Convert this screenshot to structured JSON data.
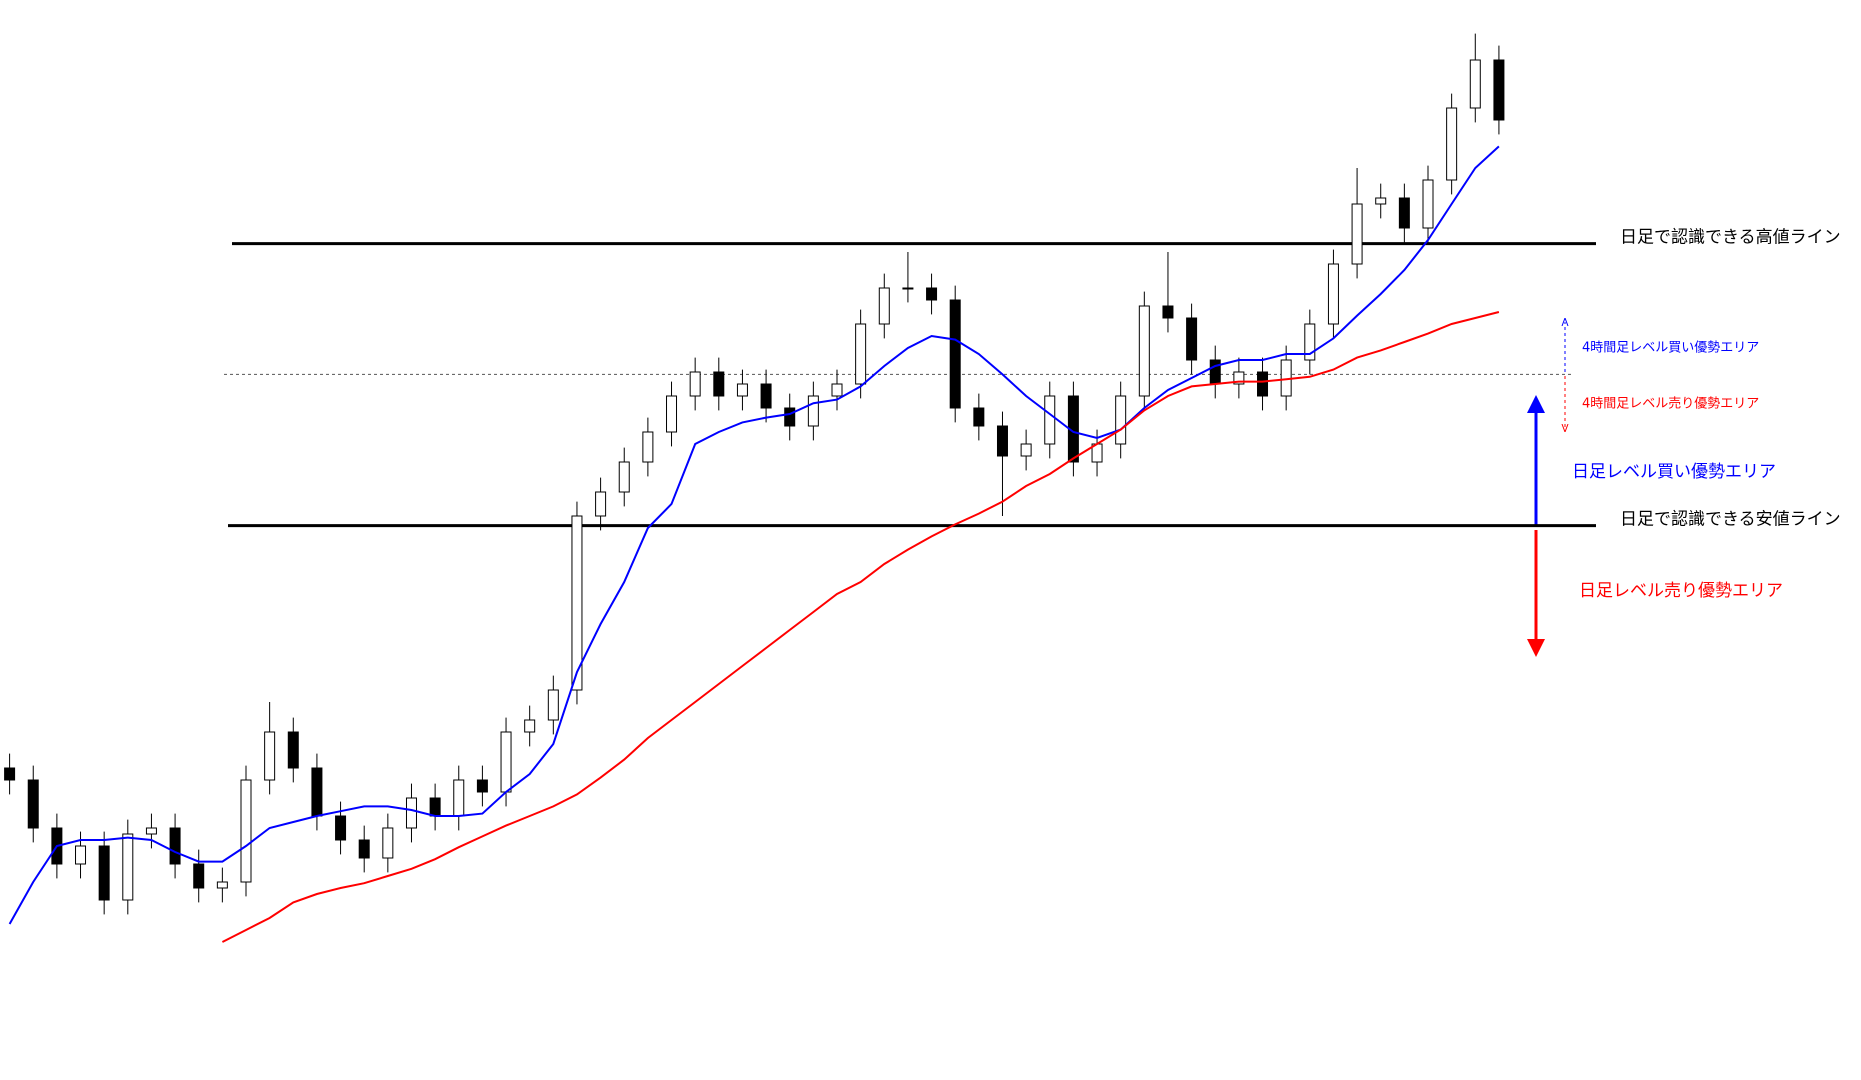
{
  "chart_data": {
    "type": "candlestick",
    "ylim": [
      0,
      900
    ],
    "candles": {
      "open": [
        260,
        250,
        210,
        180,
        195,
        150,
        205,
        210,
        180,
        160,
        165,
        250,
        290,
        260,
        220,
        200,
        185,
        210,
        235,
        220,
        250,
        240,
        290,
        300,
        325,
        470,
        490,
        515,
        540,
        570,
        590,
        570,
        580,
        560,
        545,
        570,
        580,
        630,
        660,
        660,
        650,
        560,
        545,
        520,
        530,
        570,
        515,
        530,
        570,
        645,
        635,
        600,
        580,
        590,
        570,
        600,
        630,
        680,
        730,
        735,
        710,
        750,
        810,
        850
      ],
      "high": [
        272,
        262,
        222,
        207,
        207,
        217,
        222,
        222,
        192,
        177,
        262,
        315,
        302,
        272,
        232,
        212,
        222,
        247,
        247,
        262,
        262,
        302,
        312,
        337,
        482,
        502,
        527,
        552,
        582,
        602,
        602,
        592,
        592,
        572,
        582,
        592,
        642,
        672,
        690,
        672,
        662,
        572,
        557,
        542,
        582,
        582,
        542,
        582,
        657,
        690,
        647,
        612,
        602,
        602,
        612,
        642,
        692,
        760,
        747,
        747,
        762,
        822,
        872,
        862
      ],
      "low": [
        238,
        198,
        168,
        168,
        138,
        138,
        193,
        168,
        148,
        148,
        153,
        238,
        248,
        208,
        188,
        173,
        173,
        198,
        208,
        208,
        228,
        228,
        278,
        288,
        313,
        458,
        478,
        503,
        528,
        558,
        558,
        558,
        548,
        533,
        533,
        558,
        568,
        618,
        648,
        638,
        548,
        533,
        470,
        508,
        518,
        503,
        503,
        518,
        558,
        623,
        588,
        568,
        568,
        558,
        558,
        588,
        618,
        668,
        718,
        698,
        698,
        738,
        798,
        788
      ],
      "close": [
        250,
        210,
        180,
        195,
        150,
        205,
        210,
        180,
        160,
        165,
        250,
        290,
        260,
        220,
        200,
        185,
        210,
        235,
        220,
        250,
        240,
        290,
        300,
        325,
        470,
        490,
        515,
        540,
        570,
        590,
        570,
        580,
        560,
        545,
        570,
        580,
        630,
        660,
        660,
        650,
        560,
        545,
        520,
        530,
        570,
        515,
        530,
        570,
        645,
        635,
        600,
        580,
        590,
        570,
        600,
        630,
        680,
        730,
        735,
        710,
        750,
        810,
        850,
        800
      ],
      "up_color": "#ffffff",
      "down_color": "#000000"
    },
    "series": [
      {
        "color": "#0000ff",
        "values": [
          130,
          165,
          195,
          200,
          200,
          202,
          200,
          190,
          182,
          182,
          195,
          210,
          215,
          220,
          224,
          228,
          228,
          225,
          220,
          220,
          222,
          240,
          255,
          280,
          340,
          380,
          415,
          460,
          480,
          530,
          540,
          548,
          552,
          555,
          564,
          567,
          578,
          595,
          610,
          620,
          617,
          605,
          588,
          570,
          555,
          540,
          535,
          542,
          560,
          575,
          585,
          595,
          600,
          600,
          605,
          605,
          618,
          637,
          655,
          675,
          700,
          730,
          760,
          778
        ]
      },
      {
        "color": "#ff0000",
        "values": [
          null,
          null,
          null,
          null,
          null,
          null,
          null,
          null,
          null,
          115,
          125,
          135,
          148,
          155,
          160,
          164,
          170,
          176,
          184,
          194,
          203,
          212,
          220,
          228,
          238,
          252,
          267,
          285,
          300,
          315,
          330,
          345,
          360,
          375,
          390,
          405,
          415,
          430,
          442,
          453,
          463,
          472,
          482,
          495,
          505,
          518,
          530,
          542,
          558,
          570,
          578,
          580,
          582,
          582,
          584,
          586,
          592,
          602,
          608,
          615,
          622,
          630,
          635,
          640
        ]
      }
    ],
    "hlines": [
      {
        "value": 697,
        "label": "日足で認識できる高値ライン",
        "style": "solid"
      },
      {
        "value": 462,
        "label": "日足で認識できる安値ライン",
        "style": "solid"
      },
      {
        "value": 588,
        "style": "dotted"
      }
    ],
    "annotations": [
      {
        "text": "4時間足レベル買い優勢エリア",
        "color": "#0000ff"
      },
      {
        "text": "4時間足レベル売り優勢エリア",
        "color": "#ff0000"
      },
      {
        "text": "日足レベル買い優勢エリア",
        "color": "#0000ff"
      },
      {
        "text": "日足レベル売り優勢エリア",
        "color": "#ff0000"
      }
    ]
  }
}
